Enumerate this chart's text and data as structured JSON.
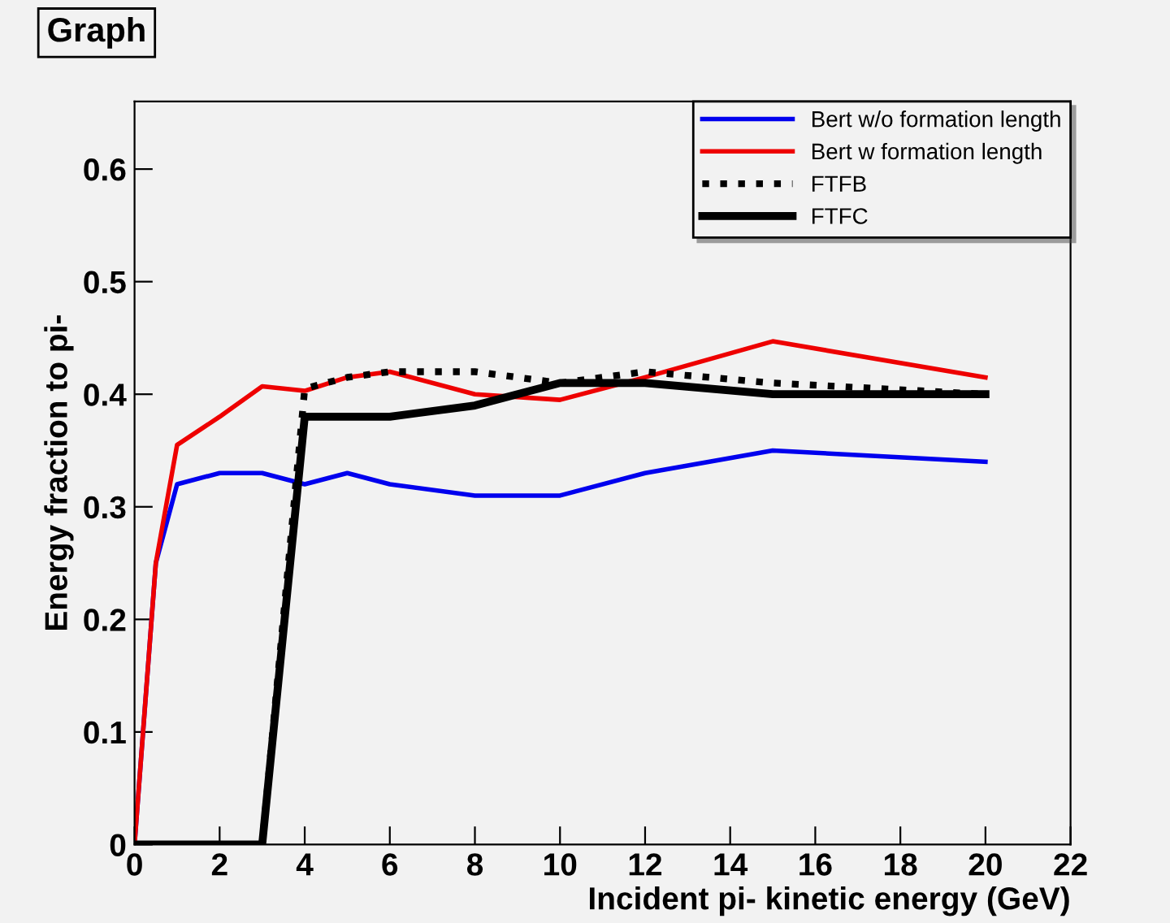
{
  "chart_data": {
    "type": "line",
    "title": "Graph",
    "xlabel": "Incident pi- kinetic energy (GeV)",
    "ylabel": "Energy fraction to pi-",
    "xlim": [
      0,
      22
    ],
    "xticks": [
      0,
      2,
      4,
      6,
      8,
      10,
      12,
      14,
      16,
      18,
      20,
      22
    ],
    "ylim": [
      0,
      0.66
    ],
    "yticks": [
      0,
      0.1,
      0.2,
      0.3,
      0.4,
      0.5,
      0.6
    ],
    "grid": false,
    "legend": "top right",
    "marker": "none",
    "series": [
      {
        "name": "Bert w/o formation length",
        "color": "#0000ee",
        "line_style": "solid",
        "x": [
          0,
          0.5,
          1,
          2,
          3,
          4,
          5,
          6,
          8,
          10,
          12,
          15,
          20
        ],
        "values": [
          0,
          0.25,
          0.32,
          0.33,
          0.33,
          0.32,
          0.33,
          0.32,
          0.31,
          0.31,
          0.33,
          0.35,
          0.34
        ]
      },
      {
        "name": "Bert w formation length",
        "color": "#ee0000",
        "line_style": "solid",
        "x": [
          0,
          0.5,
          1,
          2,
          3,
          4,
          5,
          6,
          8,
          10,
          12,
          15,
          20
        ],
        "values": [
          0,
          0.25,
          0.355,
          0.38,
          0.407,
          0.403,
          0.415,
          0.42,
          0.4,
          0.395,
          0.415,
          0.447,
          0.415
        ]
      },
      {
        "name": "FTFB",
        "color": "#000000",
        "line_style": "dotted",
        "x": [
          0,
          1,
          2,
          3,
          4,
          5,
          6,
          8,
          10,
          12,
          15,
          20
        ],
        "values": [
          0,
          0,
          0,
          0,
          0.405,
          0.415,
          0.42,
          0.42,
          0.41,
          0.42,
          0.41,
          0.4
        ]
      },
      {
        "name": "FTFC",
        "color": "#000000",
        "line_style": "solid",
        "x": [
          0,
          1,
          2,
          3,
          4,
          5,
          6,
          8,
          10,
          12,
          15,
          20
        ],
        "values": [
          0,
          0,
          0,
          0,
          0.38,
          0.38,
          0.38,
          0.39,
          0.41,
          0.41,
          0.4,
          0.4
        ]
      }
    ]
  }
}
